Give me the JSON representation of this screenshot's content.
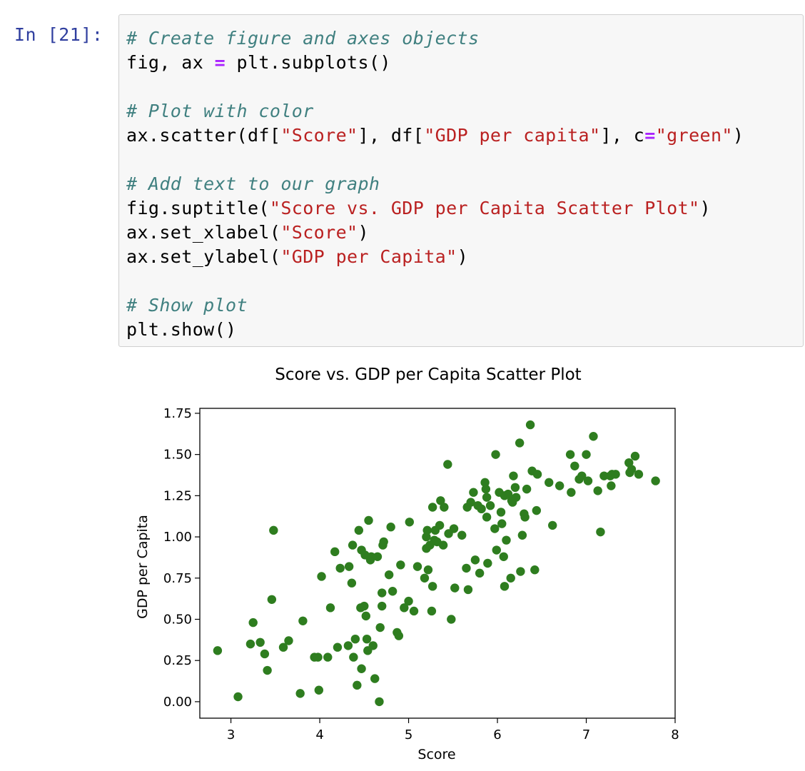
{
  "cell": {
    "prompt": "In [21]:",
    "lines": [
      [
        {
          "t": "c",
          "v": "# Create figure and axes objects"
        }
      ],
      [
        {
          "t": "n",
          "v": "fig, ax "
        },
        {
          "t": "o",
          "v": "="
        },
        {
          "t": "n",
          "v": " plt.subplots()"
        }
      ],
      [],
      [
        {
          "t": "c",
          "v": "# Plot with color"
        }
      ],
      [
        {
          "t": "n",
          "v": "ax.scatter(df["
        },
        {
          "t": "s",
          "v": "\"Score\""
        },
        {
          "t": "n",
          "v": "], df["
        },
        {
          "t": "s",
          "v": "\"GDP per capita\""
        },
        {
          "t": "n",
          "v": "], c"
        },
        {
          "t": "o",
          "v": "="
        },
        {
          "t": "s",
          "v": "\"green\""
        },
        {
          "t": "n",
          "v": ")"
        }
      ],
      [],
      [
        {
          "t": "c",
          "v": "# Add text to our graph"
        }
      ],
      [
        {
          "t": "n",
          "v": "fig.suptitle("
        },
        {
          "t": "s",
          "v": "\"Score vs. GDP per Capita Scatter Plot\""
        },
        {
          "t": "n",
          "v": ")"
        }
      ],
      [
        {
          "t": "n",
          "v": "ax.set_xlabel("
        },
        {
          "t": "s",
          "v": "\"Score\""
        },
        {
          "t": "n",
          "v": ")"
        }
      ],
      [
        {
          "t": "n",
          "v": "ax.set_ylabel("
        },
        {
          "t": "s",
          "v": "\"GDP per Capita\""
        },
        {
          "t": "n",
          "v": ")"
        }
      ],
      [],
      [
        {
          "t": "c",
          "v": "# Show plot"
        }
      ],
      [
        {
          "t": "n",
          "v": "plt.show()"
        }
      ]
    ]
  },
  "colors": {
    "point": "#2e7d1f",
    "axis": "#000000",
    "comment": "#408080",
    "string": "#ba2121",
    "operator": "#aa22ff",
    "prompt": "#303f9f"
  },
  "chart_data": {
    "type": "scatter",
    "title": "Score vs. GDP per Capita Scatter Plot",
    "xlabel": "Score",
    "ylabel": "GDP per Capita",
    "xlim": [
      2.65,
      8.0
    ],
    "ylim": [
      -0.1,
      1.78
    ],
    "xticks": [
      3,
      4,
      5,
      6,
      7,
      8
    ],
    "yticks": [
      "0.00",
      "0.25",
      "0.50",
      "0.75",
      "1.00",
      "1.25",
      "1.50",
      "1.75"
    ],
    "grid": false,
    "point_color": "green",
    "points": [
      [
        2.85,
        0.31
      ],
      [
        3.08,
        0.03
      ],
      [
        3.22,
        0.35
      ],
      [
        3.25,
        0.48
      ],
      [
        3.33,
        0.36
      ],
      [
        3.38,
        0.29
      ],
      [
        3.41,
        0.19
      ],
      [
        3.46,
        0.62
      ],
      [
        3.48,
        1.04
      ],
      [
        3.59,
        0.33
      ],
      [
        3.65,
        0.37
      ],
      [
        3.78,
        0.05
      ],
      [
        3.81,
        0.49
      ],
      [
        3.94,
        0.27
      ],
      [
        3.98,
        0.27
      ],
      [
        3.99,
        0.07
      ],
      [
        4.02,
        0.76
      ],
      [
        4.09,
        0.27
      ],
      [
        4.12,
        0.57
      ],
      [
        4.17,
        0.91
      ],
      [
        4.2,
        0.33
      ],
      [
        4.23,
        0.81
      ],
      [
        4.32,
        0.34
      ],
      [
        4.33,
        0.82
      ],
      [
        4.36,
        0.72
      ],
      [
        4.37,
        0.95
      ],
      [
        4.38,
        0.27
      ],
      [
        4.4,
        0.38
      ],
      [
        4.42,
        0.1
      ],
      [
        4.44,
        1.04
      ],
      [
        4.46,
        0.57
      ],
      [
        4.47,
        0.2
      ],
      [
        4.47,
        0.92
      ],
      [
        4.5,
        0.58
      ],
      [
        4.51,
        0.89
      ],
      [
        4.52,
        0.52
      ],
      [
        4.53,
        0.38
      ],
      [
        4.54,
        0.31
      ],
      [
        4.55,
        1.1
      ],
      [
        4.57,
        0.86
      ],
      [
        4.58,
        0.88
      ],
      [
        4.6,
        0.34
      ],
      [
        4.62,
        0.14
      ],
      [
        4.65,
        0.88
      ],
      [
        4.67,
        0.0
      ],
      [
        4.68,
        0.45
      ],
      [
        4.7,
        0.66
      ],
      [
        4.7,
        0.58
      ],
      [
        4.71,
        0.95
      ],
      [
        4.72,
        0.97
      ],
      [
        4.78,
        0.77
      ],
      [
        4.8,
        1.06
      ],
      [
        4.82,
        0.67
      ],
      [
        4.87,
        0.42
      ],
      [
        4.89,
        0.4
      ],
      [
        4.91,
        0.83
      ],
      [
        4.95,
        0.57
      ],
      [
        5.0,
        0.61
      ],
      [
        5.01,
        1.09
      ],
      [
        5.06,
        0.55
      ],
      [
        5.1,
        0.82
      ],
      [
        5.18,
        0.75
      ],
      [
        5.2,
        1.0
      ],
      [
        5.2,
        0.93
      ],
      [
        5.21,
        1.04
      ],
      [
        5.22,
        0.8
      ],
      [
        5.24,
        0.95
      ],
      [
        5.26,
        0.55
      ],
      [
        5.27,
        0.7
      ],
      [
        5.27,
        1.18
      ],
      [
        5.29,
        0.98
      ],
      [
        5.3,
        1.04
      ],
      [
        5.32,
        0.97
      ],
      [
        5.35,
        1.07
      ],
      [
        5.36,
        1.22
      ],
      [
        5.39,
        0.95
      ],
      [
        5.4,
        1.18
      ],
      [
        5.44,
        1.44
      ],
      [
        5.45,
        1.02
      ],
      [
        5.48,
        0.5
      ],
      [
        5.51,
        1.05
      ],
      [
        5.52,
        0.69
      ],
      [
        5.6,
        1.01
      ],
      [
        5.65,
        0.81
      ],
      [
        5.66,
        1.18
      ],
      [
        5.67,
        0.68
      ],
      [
        5.7,
        1.21
      ],
      [
        5.73,
        1.27
      ],
      [
        5.75,
        0.86
      ],
      [
        5.78,
        1.19
      ],
      [
        5.8,
        0.78
      ],
      [
        5.82,
        1.17
      ],
      [
        5.86,
        1.33
      ],
      [
        5.87,
        1.29
      ],
      [
        5.88,
        1.24
      ],
      [
        5.88,
        1.12
      ],
      [
        5.89,
        0.84
      ],
      [
        5.92,
        1.19
      ],
      [
        5.97,
        1.05
      ],
      [
        5.98,
        1.5
      ],
      [
        5.99,
        0.92
      ],
      [
        6.02,
        1.27
      ],
      [
        6.04,
        1.15
      ],
      [
        6.05,
        1.08
      ],
      [
        6.07,
        0.88
      ],
      [
        6.08,
        0.7
      ],
      [
        6.08,
        1.25
      ],
      [
        6.1,
        0.98
      ],
      [
        6.12,
        1.26
      ],
      [
        6.15,
        0.75
      ],
      [
        6.16,
        1.22
      ],
      [
        6.17,
        1.21
      ],
      [
        6.18,
        1.37
      ],
      [
        6.2,
        1.3
      ],
      [
        6.21,
        1.24
      ],
      [
        6.25,
        1.57
      ],
      [
        6.26,
        0.79
      ],
      [
        6.28,
        1.01
      ],
      [
        6.3,
        1.14
      ],
      [
        6.31,
        1.12
      ],
      [
        6.33,
        1.29
      ],
      [
        6.37,
        1.68
      ],
      [
        6.39,
        1.4
      ],
      [
        6.42,
        0.8
      ],
      [
        6.44,
        1.16
      ],
      [
        6.45,
        1.38
      ],
      [
        6.58,
        1.33
      ],
      [
        6.62,
        1.07
      ],
      [
        6.7,
        1.31
      ],
      [
        6.82,
        1.5
      ],
      [
        6.83,
        1.27
      ],
      [
        6.87,
        1.43
      ],
      [
        6.92,
        1.35
      ],
      [
        6.95,
        1.37
      ],
      [
        7.0,
        1.5
      ],
      [
        7.02,
        1.34
      ],
      [
        7.08,
        1.61
      ],
      [
        7.13,
        1.28
      ],
      [
        7.16,
        1.03
      ],
      [
        7.2,
        1.37
      ],
      [
        7.27,
        1.37
      ],
      [
        7.28,
        1.31
      ],
      [
        7.29,
        1.38
      ],
      [
        7.33,
        1.38
      ],
      [
        7.48,
        1.45
      ],
      [
        7.49,
        1.39
      ],
      [
        7.51,
        1.41
      ],
      [
        7.55,
        1.49
      ],
      [
        7.59,
        1.38
      ],
      [
        7.78,
        1.34
      ]
    ]
  }
}
